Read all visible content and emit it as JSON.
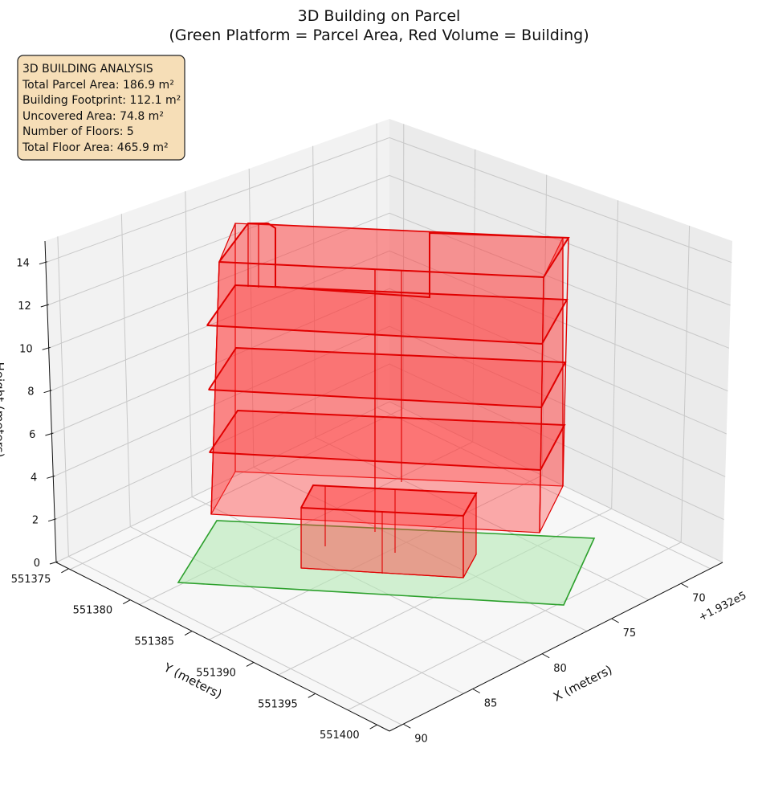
{
  "chart_data": {
    "type": "3d-volume",
    "title": "3D Building on Parcel",
    "subtitle": "(Green Platform = Parcel Area, Red Volume = Building)",
    "xlabel": "X (meters)",
    "ylabel": "Y (meters)",
    "zlabel": "Height (meters)",
    "x_offset_label": "+1.932e5",
    "x_ticks": [
      70,
      75,
      80,
      85,
      90
    ],
    "y_ticks": [
      551375,
      551380,
      551385,
      551390,
      551395,
      551400
    ],
    "z_ticks": [
      0,
      2,
      4,
      6,
      8,
      10,
      12,
      14
    ],
    "xlim": [
      67,
      91
    ],
    "ylim": [
      551374,
      551401
    ],
    "zlim": [
      0,
      15
    ],
    "parcel": {
      "color": "#2ca02c",
      "fill": "#b6eab6"
    },
    "building": {
      "color": "#e00000",
      "fill": "#ff3b3b",
      "floors": 5
    },
    "info_box": {
      "heading": "3D BUILDING ANALYSIS",
      "lines": [
        "Total Parcel Area: 186.9 m²",
        "Building Footprint: 112.1 m²",
        "Uncovered Area: 74.8 m²",
        "Number of Floors: 5",
        "Total Floor Area: 465.9 m²"
      ]
    }
  }
}
